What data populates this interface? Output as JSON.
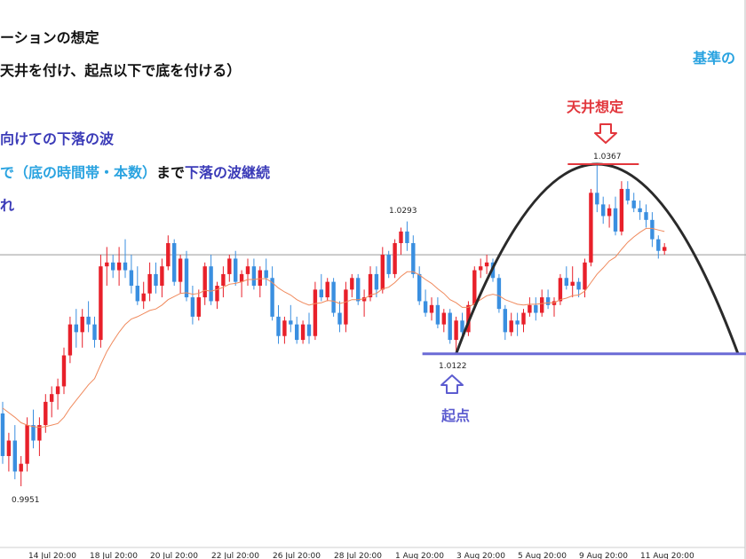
{
  "annotations": {
    "line1": "ーションの想定",
    "line2": "天井を付け、起点以下で底を付ける）",
    "top_right": "基準の",
    "line3": "向けての下落の波",
    "line4_a": "で（底の時間帯・本数）",
    "line4_b": "まで",
    "line4_c": "下落の波継続",
    "line5": "れ",
    "ceiling_label": "天井想定",
    "origin_label": "起点"
  },
  "colors": {
    "bull": "#e8202a",
    "bear": "#3a8fe0",
    "ma": "#f08a5d",
    "arc": "#2a2a2a",
    "support": "#6b6bd6",
    "ceiling": "#e2363c",
    "navy": "#3b3bb8",
    "cyan": "#2aa3e0",
    "hline": "#9a9a9a"
  },
  "chart_data": {
    "type": "candlestick",
    "x_ticks": [
      "14 Jul 20:00",
      "18 Jul 20:00",
      "20 Jul 20:00",
      "22 Jul 20:00",
      "26 Jul 20:00",
      "28 Jul 20:00",
      "1 Aug 20:00",
      "3 Aug 20:00",
      "5 Aug 20:00",
      "9 Aug 20:00",
      "11 Aug 20:00"
    ],
    "price_labels": {
      "low": "0.9951",
      "mid_high": "1.0293",
      "origin": "1.0122",
      "high": "1.0367"
    },
    "levels": {
      "low": 0.9951,
      "mid_high": 1.0293,
      "origin": 1.0122,
      "high": 1.0367,
      "horizontal": 1.025
    },
    "ohlc": [
      [
        1.0045,
        1.006,
        0.998,
        0.999
      ],
      [
        0.999,
        1.002,
        0.997,
        1.001
      ],
      [
        1.001,
        1.003,
        0.996,
        0.997
      ],
      [
        0.997,
        0.999,
        0.9951,
        0.998
      ],
      [
        0.998,
        1.004,
        0.997,
        1.003
      ],
      [
        1.003,
        1.005,
        1.0,
        1.001
      ],
      [
        1.001,
        1.004,
        0.999,
        1.003
      ],
      [
        1.003,
        1.007,
        1.002,
        1.006
      ],
      [
        1.006,
        1.008,
        1.004,
        1.007
      ],
      [
        1.007,
        1.009,
        1.005,
        1.008
      ],
      [
        1.008,
        1.013,
        1.007,
        1.012
      ],
      [
        1.012,
        1.017,
        1.011,
        1.016
      ],
      [
        1.016,
        1.018,
        1.013,
        1.015
      ],
      [
        1.015,
        1.018,
        1.013,
        1.017
      ],
      [
        1.017,
        1.019,
        1.015,
        1.016
      ],
      [
        1.016,
        1.017,
        1.013,
        1.014
      ],
      [
        1.014,
        1.025,
        1.013,
        1.0235
      ],
      [
        1.0235,
        1.026,
        1.021,
        1.024
      ],
      [
        1.024,
        1.025,
        1.022,
        1.023
      ],
      [
        1.023,
        1.026,
        1.021,
        1.024
      ],
      [
        1.024,
        1.027,
        1.022,
        1.023
      ],
      [
        1.023,
        1.025,
        1.02,
        1.021
      ],
      [
        1.021,
        1.0235,
        1.0185,
        1.019
      ],
      [
        1.019,
        1.0215,
        1.018,
        1.02
      ],
      [
        1.02,
        1.024,
        1.019,
        1.0225
      ],
      [
        1.0225,
        1.024,
        1.02,
        1.021
      ],
      [
        1.021,
        1.0245,
        1.0195,
        1.0235
      ],
      [
        1.0235,
        1.0275,
        1.023,
        1.0265
      ],
      [
        1.0265,
        1.027,
        1.021,
        1.0215
      ],
      [
        1.0215,
        1.025,
        1.02,
        1.0245
      ],
      [
        1.0245,
        1.0255,
        1.019,
        1.0195
      ],
      [
        1.0195,
        1.021,
        1.016,
        1.017
      ],
      [
        1.017,
        1.0205,
        1.0165,
        1.0195
      ],
      [
        1.0195,
        1.024,
        1.0185,
        1.0235
      ],
      [
        1.0235,
        1.025,
        1.0185,
        1.019
      ],
      [
        1.019,
        1.0215,
        1.018,
        1.021
      ],
      [
        1.021,
        1.0235,
        1.0195,
        1.0225
      ],
      [
        1.0225,
        1.025,
        1.0215,
        1.0245
      ],
      [
        1.0245,
        1.0255,
        1.021,
        1.0215
      ],
      [
        1.0215,
        1.023,
        1.0195,
        1.0225
      ],
      [
        1.0225,
        1.0245,
        1.021,
        1.0235
      ],
      [
        1.0235,
        1.0245,
        1.0205,
        1.021
      ],
      [
        1.021,
        1.0235,
        1.0195,
        1.023
      ],
      [
        1.023,
        1.0245,
        1.021,
        1.022
      ],
      [
        1.022,
        1.0235,
        1.0165,
        1.017
      ],
      [
        1.017,
        1.0185,
        1.0135,
        1.0145
      ],
      [
        1.0145,
        1.017,
        1.0135,
        1.0165
      ],
      [
        1.0165,
        1.0185,
        1.015,
        1.016
      ],
      [
        1.016,
        1.017,
        1.0135,
        1.014
      ],
      [
        1.014,
        1.0165,
        1.0135,
        1.016
      ],
      [
        1.016,
        1.0175,
        1.0135,
        1.0145
      ],
      [
        1.0145,
        1.0215,
        1.014,
        1.0205
      ],
      [
        1.0205,
        1.0225,
        1.019,
        1.0195
      ],
      [
        1.0195,
        1.022,
        1.019,
        1.0215
      ],
      [
        1.0215,
        1.022,
        1.017,
        1.0175
      ],
      [
        1.0175,
        1.019,
        1.015,
        1.016
      ],
      [
        1.016,
        1.0215,
        1.015,
        1.0205
      ],
      [
        1.0205,
        1.0225,
        1.0195,
        1.022
      ],
      [
        1.022,
        1.0225,
        1.0185,
        1.019
      ],
      [
        1.019,
        1.0205,
        1.017,
        1.0195
      ],
      [
        1.0195,
        1.0235,
        1.019,
        1.0225
      ],
      [
        1.0225,
        1.0235,
        1.0195,
        1.0205
      ],
      [
        1.0205,
        1.026,
        1.02,
        1.025
      ],
      [
        1.025,
        1.0255,
        1.022,
        1.0225
      ],
      [
        1.0225,
        1.027,
        1.022,
        1.0265
      ],
      [
        1.0265,
        1.0285,
        1.025,
        1.028
      ],
      [
        1.028,
        1.0293,
        1.0255,
        1.0265
      ],
      [
        1.0265,
        1.0275,
        1.022,
        1.0225
      ],
      [
        1.0225,
        1.0235,
        1.0185,
        1.019
      ],
      [
        1.019,
        1.0205,
        1.017,
        1.0175
      ],
      [
        1.0175,
        1.0195,
        1.0165,
        1.0185
      ],
      [
        1.0185,
        1.0195,
        1.0155,
        1.016
      ],
      [
        1.016,
        1.018,
        1.015,
        1.0175
      ],
      [
        1.0175,
        1.018,
        1.0135,
        1.014
      ],
      [
        1.014,
        1.017,
        1.0122,
        1.0165
      ],
      [
        1.0165,
        1.0175,
        1.0145,
        1.015
      ],
      [
        1.015,
        1.019,
        1.0145,
        1.0185
      ],
      [
        1.0185,
        1.0235,
        1.018,
        1.023
      ],
      [
        1.023,
        1.0245,
        1.022,
        1.0235
      ],
      [
        1.0235,
        1.025,
        1.0225,
        1.024
      ],
      [
        1.024,
        1.0245,
        1.0215,
        1.022
      ],
      [
        1.022,
        1.0225,
        1.0175,
        1.018
      ],
      [
        1.018,
        1.0185,
        1.014,
        1.015
      ],
      [
        1.015,
        1.0175,
        1.0145,
        1.0165
      ],
      [
        1.0165,
        1.0175,
        1.0145,
        1.016
      ],
      [
        1.016,
        1.018,
        1.015,
        1.0175
      ],
      [
        1.0175,
        1.0195,
        1.017,
        1.0185
      ],
      [
        1.0185,
        1.0195,
        1.0165,
        1.0175
      ],
      [
        1.0175,
        1.0205,
        1.017,
        1.0195
      ],
      [
        1.0195,
        1.0205,
        1.018,
        1.0185
      ],
      [
        1.0185,
        1.0195,
        1.017,
        1.019
      ],
      [
        1.019,
        1.0225,
        1.0185,
        1.022
      ],
      [
        1.022,
        1.0235,
        1.0205,
        1.021
      ],
      [
        1.021,
        1.0235,
        1.0195,
        1.0215
      ],
      [
        1.0215,
        1.022,
        1.0195,
        1.0205
      ],
      [
        1.0205,
        1.0245,
        1.0195,
        1.024
      ],
      [
        1.024,
        1.0335,
        1.0235,
        1.033
      ],
      [
        1.033,
        1.0367,
        1.0305,
        1.0315
      ],
      [
        1.0315,
        1.0325,
        1.029,
        1.03
      ],
      [
        1.03,
        1.0315,
        1.0285,
        1.031
      ],
      [
        1.031,
        1.0325,
        1.0275,
        1.028
      ],
      [
        1.028,
        1.0345,
        1.0275,
        1.0335
      ],
      [
        1.0335,
        1.0345,
        1.0315,
        1.032
      ],
      [
        1.032,
        1.033,
        1.0305,
        1.031
      ],
      [
        1.031,
        1.032,
        1.0295,
        1.0305
      ],
      [
        1.0305,
        1.0315,
        1.0285,
        1.0295
      ],
      [
        1.0295,
        1.0305,
        1.026,
        1.027
      ],
      [
        1.027,
        1.0275,
        1.0245,
        1.0255
      ],
      [
        1.0255,
        1.0265,
        1.025,
        1.026
      ]
    ],
    "ma": [
      1.0052,
      1.0046,
      1.004,
      1.0033,
      1.003,
      1.0028,
      1.0027,
      1.0028,
      1.003,
      1.0032,
      1.004,
      1.0052,
      1.0062,
      1.0072,
      1.0082,
      1.009,
      1.0108,
      1.0125,
      1.0138,
      1.015,
      1.016,
      1.0167,
      1.017,
      1.0174,
      1.0178,
      1.018,
      1.0185,
      1.0192,
      1.0196,
      1.02,
      1.0201,
      1.0199,
      1.02,
      1.0204,
      1.0203,
      1.0205,
      1.0208,
      1.0212,
      1.0213,
      1.0215,
      1.0218,
      1.0218,
      1.0219,
      1.0219,
      1.0214,
      1.0207,
      1.0202,
      1.0198,
      1.0192,
      1.0188,
      1.0185,
      1.0187,
      1.0188,
      1.0191,
      1.019,
      1.0187,
      1.0189,
      1.0192,
      1.0192,
      1.0193,
      1.0198,
      1.02,
      1.0206,
      1.0208,
      1.0214,
      1.0222,
      1.0228,
      1.0228,
      1.0224,
      1.0218,
      1.0213,
      1.0206,
      1.02,
      1.0192,
      1.0188,
      1.0182,
      1.0182,
      1.0187,
      1.0192,
      1.0197,
      1.0199,
      1.0197,
      1.0192,
      1.0189,
      1.0186,
      1.0185,
      1.0186,
      1.0186,
      1.0187,
      1.0188,
      1.0188,
      1.0192,
      1.0194,
      1.0197,
      1.0198,
      1.0203,
      1.0214,
      1.0225,
      1.0233,
      1.0242,
      1.0247,
      1.0257,
      1.0266,
      1.0273,
      1.0279,
      1.0284,
      1.0284,
      1.0282,
      1.028
    ]
  }
}
